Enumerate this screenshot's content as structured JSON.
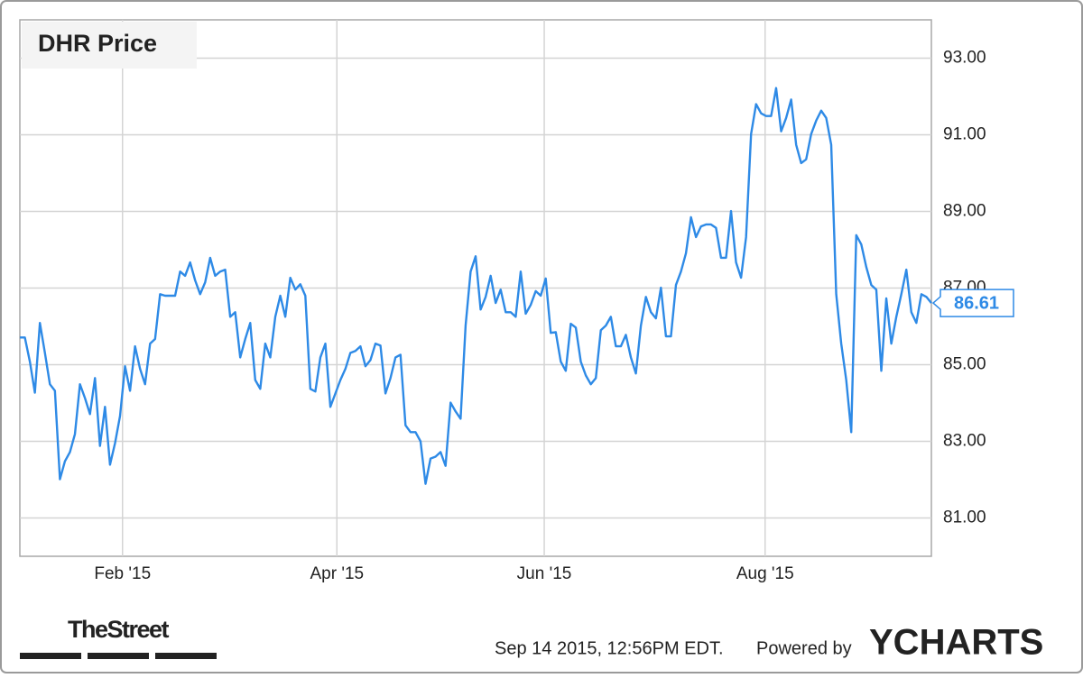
{
  "chart_data": {
    "type": "line",
    "title": "DHR Price",
    "color": "#2e8ae6",
    "grid": true,
    "values": [
      85.71,
      85.71,
      85.08,
      84.27,
      86.09,
      85.31,
      84.49,
      84.32,
      82.01,
      82.48,
      82.72,
      83.19,
      84.49,
      84.13,
      83.71,
      84.65,
      82.88,
      83.9,
      82.39,
      82.95,
      83.66,
      84.96,
      84.32,
      85.48,
      84.89,
      84.49,
      85.55,
      85.67,
      86.84,
      86.8,
      86.8,
      86.8,
      87.43,
      87.32,
      87.67,
      87.2,
      86.84,
      87.15,
      87.79,
      87.32,
      87.43,
      87.48,
      86.25,
      86.37,
      85.19,
      85.67,
      86.09,
      84.6,
      84.37,
      85.55,
      85.19,
      86.25,
      86.8,
      86.25,
      87.27,
      86.96,
      87.1,
      86.8,
      84.37,
      84.3,
      85.19,
      85.55,
      83.9,
      84.25,
      84.6,
      84.89,
      85.31,
      85.36,
      85.48,
      84.96,
      85.12,
      85.55,
      85.5,
      84.25,
      84.65,
      85.19,
      85.26,
      83.42,
      83.24,
      83.24,
      83.0,
      81.89,
      82.55,
      82.6,
      82.72,
      82.36,
      84.01,
      83.78,
      83.59,
      86.02,
      87.43,
      87.83,
      86.44,
      86.77,
      87.32,
      86.61,
      86.96,
      86.37,
      86.37,
      86.25,
      87.43,
      86.33,
      86.56,
      86.92,
      86.8,
      87.25,
      85.83,
      85.85,
      85.08,
      84.84,
      86.07,
      85.97,
      85.08,
      84.72,
      84.49,
      84.65,
      85.9,
      86.02,
      86.25,
      85.48,
      85.48,
      85.78,
      85.19,
      84.77,
      86.02,
      86.77,
      86.37,
      86.21,
      87.01,
      85.74,
      85.74,
      87.08,
      87.43,
      87.91,
      88.85,
      88.33,
      88.61,
      88.66,
      88.66,
      88.57,
      87.79,
      87.79,
      89.01,
      87.67,
      87.27,
      88.33,
      91.02,
      91.8,
      91.56,
      91.49,
      91.49,
      92.22,
      91.09,
      91.44,
      91.92,
      90.74,
      90.26,
      90.36,
      91.02,
      91.37,
      91.63,
      91.44,
      90.74,
      86.84,
      85.55,
      84.6,
      83.24,
      88.38,
      88.14,
      87.55,
      87.08,
      86.96,
      84.84,
      86.73,
      85.55,
      86.25,
      86.84,
      87.48,
      86.37,
      86.09,
      86.84,
      86.77,
      86.61
    ],
    "xlim": [
      0,
      182
    ],
    "xticks": [
      {
        "value": 20.5,
        "label": "Feb '15"
      },
      {
        "value": 63.3,
        "label": "Apr '15"
      },
      {
        "value": 104.7,
        "label": "Jun '15"
      },
      {
        "value": 148.8,
        "label": "Aug '15"
      }
    ],
    "ylim": [
      80,
      94
    ],
    "yticks": [
      {
        "value": 81,
        "label": "81.00"
      },
      {
        "value": 83,
        "label": "83.00"
      },
      {
        "value": 85,
        "label": "85.00"
      },
      {
        "value": 87,
        "label": "87.00"
      },
      {
        "value": 89,
        "label": "89.00"
      },
      {
        "value": 91,
        "label": "91.00"
      },
      {
        "value": 93,
        "label": "93.00"
      }
    ],
    "footer": {
      "logo": "TheStreet",
      "timestamp": "Sep 14 2015, 12:56PM EDT.",
      "powered_by": "Powered by",
      "brand": "YCHARTS"
    }
  }
}
